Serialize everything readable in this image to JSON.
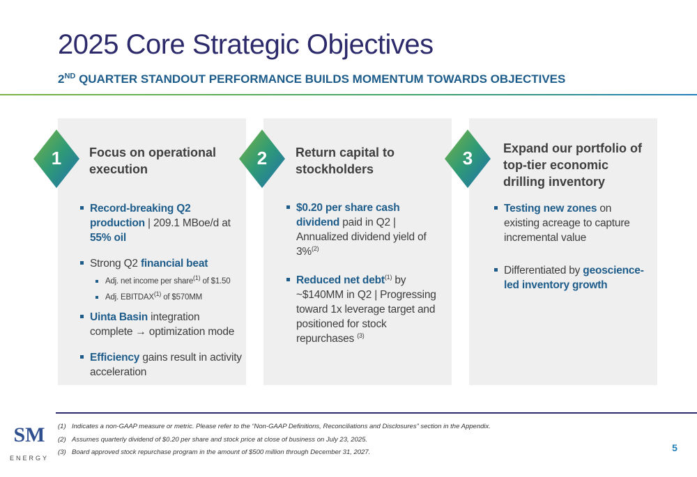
{
  "header": {
    "title": "2025 Core Strategic Objectives",
    "subtitle": {
      "number": "2",
      "suffix": "ND",
      "rest": " QUARTER STANDOUT PERFORMANCE BUILDS MOMENTUM TOWARDS OBJECTIVES"
    }
  },
  "columns": [
    {
      "number": "1",
      "heading": "Focus on operational execution",
      "bullets": [
        {
          "runs": [
            "Record-breaking Q2 production",
            " | 209.1 MBoe/d at ",
            "55% oil"
          ]
        },
        {
          "runs": [
            "Strong Q2 ",
            "financial beat"
          ],
          "sub_bullets": [
            [
              "Adj. net income per share",
              "(1)",
              " of $1.50"
            ],
            [
              "Adj. EBITDAX",
              "(1)",
              " of $570MM"
            ]
          ]
        },
        {
          "runs": [
            "Uinta Basin",
            " integration complete → optimization mode"
          ]
        },
        {
          "runs": [
            "Efficiency",
            " gains result in activity acceleration"
          ]
        }
      ]
    },
    {
      "number": "2",
      "heading": "Return capital to stockholders",
      "bullets": [
        {
          "runs": [
            "$0.20 per share cash dividend",
            " paid in Q2 | Annualized dividend yield of 3%",
            "(2)"
          ]
        },
        {
          "runs": [
            "Reduced net debt",
            "(1)",
            " by ~$140MM in Q2 | Progressing toward 1x leverage target and positioned for stock repurchases ",
            "(3)"
          ]
        }
      ]
    },
    {
      "number": "3",
      "heading": "Expand our portfolio of top-tier economic drilling inventory",
      "bullets": [
        {
          "runs": [
            "Testing new zones",
            " on existing acreage to capture incremental value"
          ]
        },
        {
          "runs": [
            "Differentiated by ",
            "geoscience-led inventory growth"
          ]
        }
      ]
    }
  ],
  "footer": {
    "logo": {
      "mark": "SM",
      "name": "ENERGY"
    },
    "footnotes": [
      {
        "marker": "(1)",
        "text": "Indicates a non-GAAP measure or metric. Please refer to the “Non-GAAP Definitions, Reconciliations and Disclosures” section in the Appendix."
      },
      {
        "marker": "(2)",
        "text": "Assumes quarterly dividend of $0.20 per share and stock price at close of business on July 23, 2025."
      },
      {
        "marker": "(3)",
        "text": "Board approved stock repurchase program in the amount of $500 million through December 31, 2027."
      }
    ],
    "page_number": "5"
  }
}
